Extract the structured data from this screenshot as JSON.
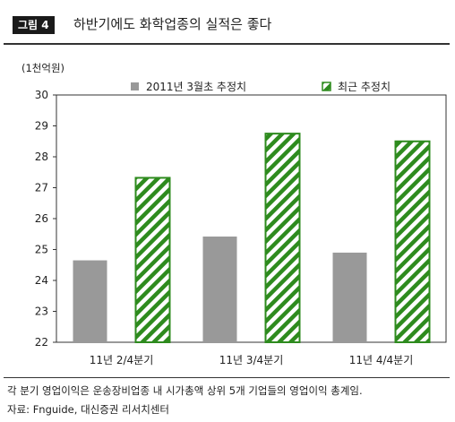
{
  "header": {
    "badge": "그림 4",
    "title": "하반기에도 화학업종의 실적은 좋다"
  },
  "chart_data": {
    "type": "bar",
    "unit_label": "(1천억원)",
    "categories": [
      "11년 2/4분기",
      "11년 3/4분기",
      "11년 4/4분기"
    ],
    "series": [
      {
        "name": "2011년 3월초 추정치",
        "values": [
          24.65,
          25.42,
          24.9
        ],
        "color": "#999999",
        "pattern": "solid"
      },
      {
        "name": "최근 추정치",
        "values": [
          27.32,
          28.75,
          28.5
        ],
        "color": "#2e8b1e",
        "pattern": "hatched"
      }
    ],
    "ylim": [
      22,
      30
    ],
    "yticks": [
      22,
      23,
      24,
      25,
      26,
      27,
      28,
      29,
      30
    ],
    "legend_position": "top"
  },
  "footer": {
    "note": "각 분기 영업이익은 운송장비업종 내 시가총액 상위 5개 기업들의 영업이익 총계임.",
    "source": "자료: Fnguide, 대신증권 리서치센터"
  }
}
